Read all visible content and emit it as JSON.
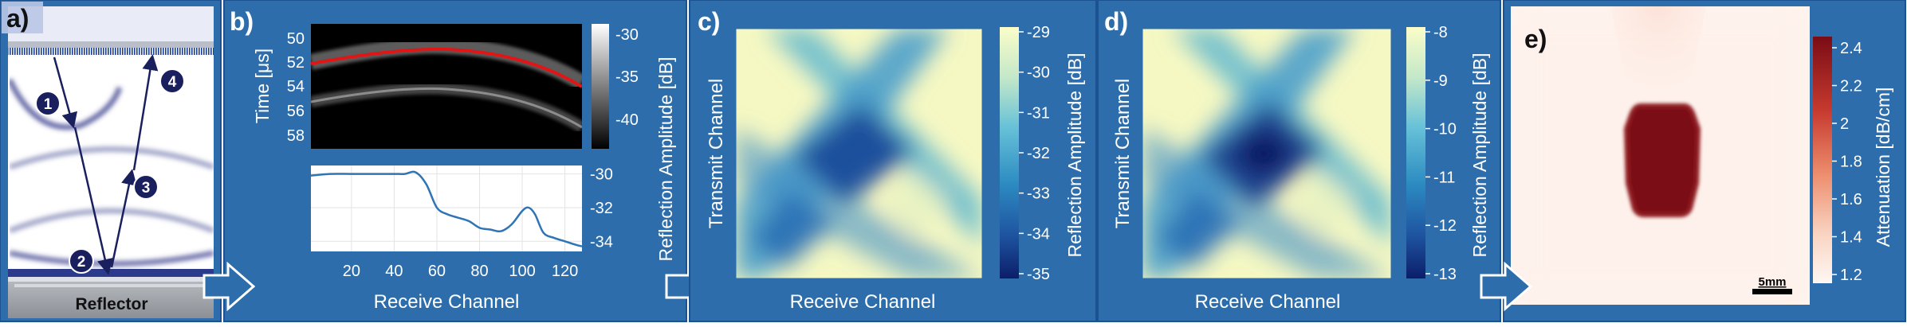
{
  "colors": {
    "panel_blue": "#2d6dab",
    "panel_border": "#1d5290",
    "navy": "#1a1f5e",
    "fit_line": "#e01515",
    "trace_line": "#2f74b5",
    "attenuation_max": "#7a0c15"
  },
  "panels": {
    "a": {
      "label": "a)",
      "reflector_label": "Reflector",
      "markers": [
        "1",
        "2",
        "3",
        "4"
      ]
    },
    "b": {
      "label": "b)",
      "ylabel": "Time [μs]",
      "xlabel": "Receive Channel",
      "colorbar_label": "Reflection Amplitude [dB]",
      "y_ticks": [
        "50",
        "52",
        "54",
        "56",
        "58"
      ],
      "colorbar_ticks": [
        "-30",
        "-35",
        "-40"
      ],
      "x_ticks": [
        "20",
        "40",
        "60",
        "80",
        "100",
        "120"
      ],
      "trace_ticks": [
        "-30",
        "-32",
        "-34"
      ]
    },
    "c": {
      "label": "c)",
      "ylabel": "Transmit Channel",
      "xlabel": "Receive Channel",
      "colorbar_label": "Reflection Amplitude [dB]",
      "colorbar_ticks": [
        "-29",
        "-30",
        "-31",
        "-32",
        "-33",
        "-34",
        "-35"
      ]
    },
    "d": {
      "label": "d)",
      "ylabel": "Transmit Channel",
      "xlabel": "Receive Channel",
      "colorbar_label": "Reflection Amplitude [dB]",
      "colorbar_ticks": [
        "-8",
        "-9",
        "-10",
        "-11",
        "-12",
        "-13"
      ]
    },
    "e": {
      "label": "e)",
      "colorbar_label": "Attenuation [dB/cm]",
      "colorbar_ticks": [
        "2.4",
        "2.2",
        "2",
        "1.8",
        "1.6",
        "1.4",
        "1.2"
      ],
      "scalebar_label": "5mm"
    }
  },
  "chart_data": {
    "type": "line",
    "x": [
      1,
      10,
      20,
      30,
      40,
      45,
      50,
      55,
      60,
      65,
      70,
      75,
      80,
      85,
      90,
      95,
      100,
      103,
      106,
      110,
      115,
      120,
      125,
      128
    ],
    "values": [
      -30.1,
      -30.0,
      -30.0,
      -30.0,
      -30.0,
      -30.0,
      -29.9,
      -30.6,
      -32.0,
      -32.4,
      -32.6,
      -32.8,
      -33.2,
      -33.3,
      -33.4,
      -33.0,
      -32.2,
      -32.0,
      -32.4,
      -33.5,
      -33.8,
      -34.0,
      -34.2,
      -34.3
    ],
    "xlabel": "Receive Channel",
    "ylabel": "",
    "xlim": [
      1,
      128
    ],
    "ylim": [
      -34.6,
      -29.5
    ],
    "grid": true
  }
}
